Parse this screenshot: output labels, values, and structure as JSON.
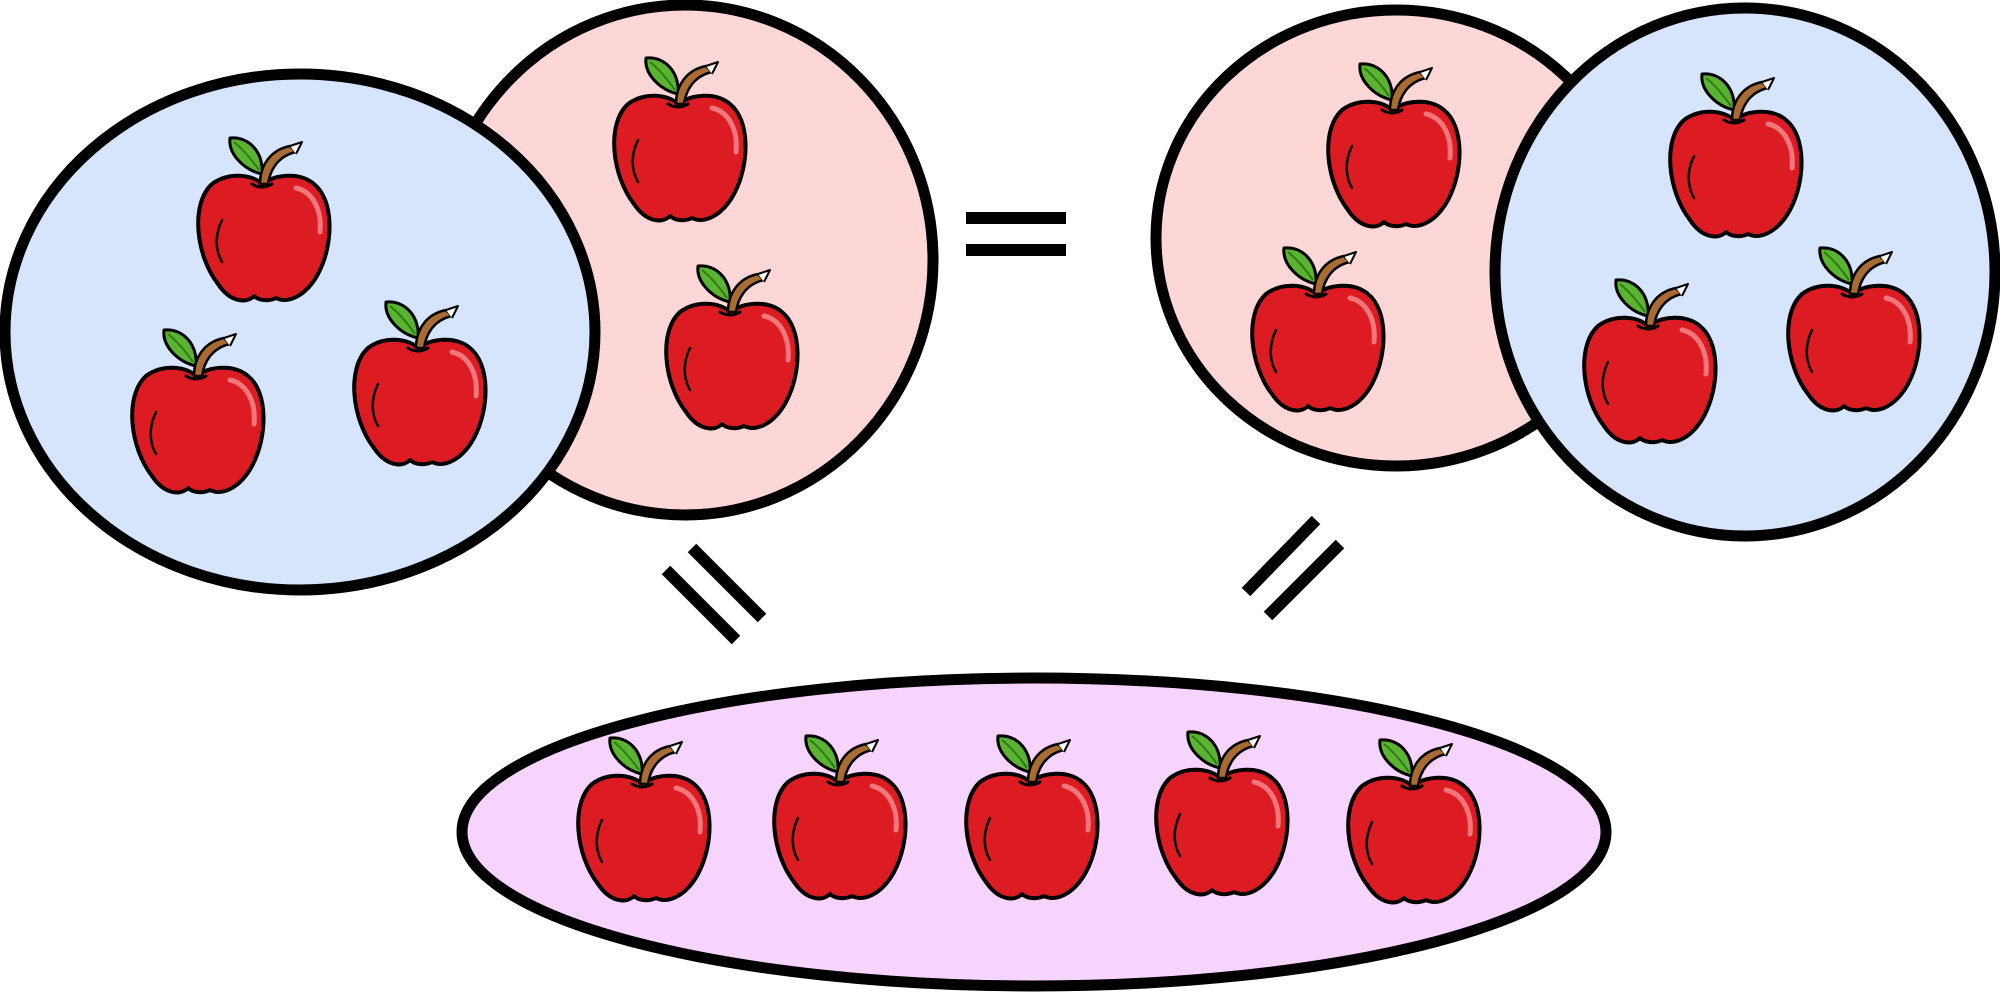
{
  "colors": {
    "blue_fill": "#d6e4fc",
    "pink_fill": "#fdd6d8",
    "purple_fill": "#f6d4fd",
    "outline": "#000000",
    "apple_red": "#dd1b23",
    "apple_highlight": "#f2767b",
    "leaf_green": "#5bb431",
    "leaf_dark": "#2f7a14",
    "stem_brown": "#a86c32"
  },
  "icons": {
    "apple": "apple-icon",
    "equals": "equals-sign"
  },
  "groups": {
    "left_blue": {
      "count": 3
    },
    "left_pink": {
      "count": 2
    },
    "right_pink": {
      "count": 2
    },
    "right_blue": {
      "count": 3
    },
    "total": {
      "count": 5
    }
  }
}
